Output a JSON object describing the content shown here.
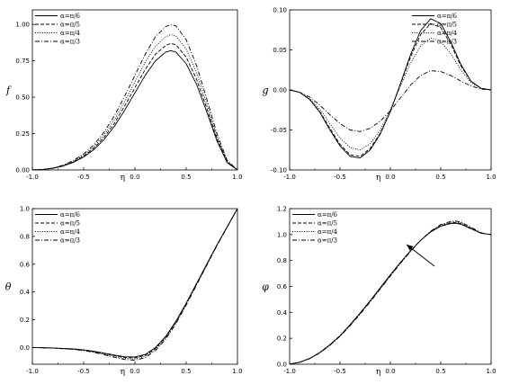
{
  "chart_data": [
    {
      "type": "line",
      "ylabel": "f",
      "xlabel": "η",
      "xlim": [
        -1.0,
        1.0
      ],
      "ylim": [
        0.0,
        1.1
      ],
      "xticks": [
        "-1.0",
        "-0.5",
        "0.0",
        "0.5",
        "1.0"
      ],
      "yticks": [
        "0.00",
        "0.25",
        "0.50",
        "0.75",
        "1.00"
      ],
      "ytick_values": [
        0,
        0.25,
        0.5,
        0.75,
        1.0
      ],
      "legend_position": "top-left",
      "x": [
        -1.0,
        -0.9,
        -0.8,
        -0.7,
        -0.6,
        -0.5,
        -0.4,
        -0.3,
        -0.2,
        -0.1,
        0.0,
        0.1,
        0.2,
        0.3,
        0.35,
        0.4,
        0.5,
        0.6,
        0.7,
        0.8,
        0.9,
        1.0
      ],
      "series": [
        {
          "name": "α=π/6",
          "style": "solid",
          "values": [
            0.0,
            0.003,
            0.011,
            0.027,
            0.052,
            0.089,
            0.14,
            0.21,
            0.3,
            0.41,
            0.53,
            0.65,
            0.75,
            0.81,
            0.82,
            0.81,
            0.73,
            0.59,
            0.4,
            0.2,
            0.05,
            0.0
          ]
        },
        {
          "name": "α=π/5",
          "style": "dashed",
          "values": [
            0.0,
            0.003,
            0.012,
            0.029,
            0.056,
            0.095,
            0.15,
            0.225,
            0.32,
            0.44,
            0.565,
            0.69,
            0.795,
            0.855,
            0.87,
            0.86,
            0.775,
            0.625,
            0.425,
            0.215,
            0.055,
            0.0
          ]
        },
        {
          "name": "α=π/4",
          "style": "dotted",
          "values": [
            0.0,
            0.003,
            0.012,
            0.031,
            0.06,
            0.102,
            0.16,
            0.24,
            0.345,
            0.47,
            0.605,
            0.74,
            0.85,
            0.915,
            0.93,
            0.92,
            0.83,
            0.67,
            0.455,
            0.23,
            0.06,
            0.0
          ]
        },
        {
          "name": "α=π/3",
          "style": "dashdot",
          "values": [
            0.0,
            0.003,
            0.013,
            0.033,
            0.065,
            0.11,
            0.173,
            0.26,
            0.373,
            0.507,
            0.65,
            0.795,
            0.915,
            0.985,
            1.0,
            0.99,
            0.895,
            0.72,
            0.49,
            0.25,
            0.065,
            0.0
          ]
        }
      ]
    },
    {
      "type": "line",
      "ylabel": "g",
      "xlabel": "η",
      "xlim": [
        -1.0,
        1.0
      ],
      "ylim": [
        -0.1,
        0.1
      ],
      "xticks": [
        "-1.0",
        "-0.5",
        "0.0",
        "0.5",
        "1.0"
      ],
      "yticks": [
        "-0.10",
        "-0.05",
        "0.00",
        "0.05",
        "0.10"
      ],
      "ytick_values": [
        -0.1,
        -0.05,
        0.0,
        0.05,
        0.1
      ],
      "legend_position": "top-right",
      "x": [
        -1.0,
        -0.9,
        -0.8,
        -0.7,
        -0.6,
        -0.5,
        -0.4,
        -0.3,
        -0.2,
        -0.1,
        0.0,
        0.1,
        0.2,
        0.3,
        0.4,
        0.5,
        0.6,
        0.7,
        0.8,
        0.9,
        1.0
      ],
      "series": [
        {
          "name": "α=π/6",
          "style": "solid",
          "values": [
            0.0,
            -0.003,
            -0.012,
            -0.028,
            -0.05,
            -0.07,
            -0.083,
            -0.085,
            -0.075,
            -0.055,
            -0.027,
            0.008,
            0.044,
            0.074,
            0.089,
            0.083,
            0.06,
            0.032,
            0.011,
            0.002,
            0.0
          ]
        },
        {
          "name": "α=π/5",
          "style": "dashed",
          "values": [
            0.0,
            -0.003,
            -0.012,
            -0.027,
            -0.048,
            -0.068,
            -0.081,
            -0.083,
            -0.073,
            -0.054,
            -0.027,
            0.007,
            0.041,
            0.069,
            0.083,
            0.078,
            0.057,
            0.03,
            0.011,
            0.002,
            0.0
          ]
        },
        {
          "name": "α=π/4",
          "style": "dotted",
          "values": [
            0.0,
            -0.003,
            -0.011,
            -0.024,
            -0.042,
            -0.06,
            -0.072,
            -0.075,
            -0.067,
            -0.05,
            -0.025,
            0.005,
            0.033,
            0.055,
            0.065,
            0.061,
            0.045,
            0.025,
            0.009,
            0.002,
            0.0
          ]
        },
        {
          "name": "α=π/3",
          "style": "dashdot",
          "values": [
            0.0,
            -0.003,
            -0.009,
            -0.019,
            -0.031,
            -0.042,
            -0.05,
            -0.052,
            -0.048,
            -0.039,
            -0.026,
            -0.01,
            0.006,
            0.018,
            0.024,
            0.023,
            0.018,
            0.011,
            0.005,
            0.001,
            0.0
          ]
        }
      ]
    },
    {
      "type": "line",
      "ylabel": "θ",
      "xlabel": "η",
      "xlim": [
        -1.0,
        1.0
      ],
      "ylim": [
        -0.12,
        1.0
      ],
      "xticks": [
        "-1.0",
        "-0.5",
        "0.0",
        "0.5",
        "1.0"
      ],
      "yticks": [
        "0.0",
        "0.2",
        "0.4",
        "0.6",
        "0.8",
        "1.0"
      ],
      "ytick_values": [
        0.0,
        0.2,
        0.4,
        0.6,
        0.8,
        1.0
      ],
      "legend_position": "top-left",
      "x": [
        -1.0,
        -0.8,
        -0.6,
        -0.5,
        -0.4,
        -0.3,
        -0.2,
        -0.1,
        0.0,
        0.1,
        0.2,
        0.3,
        0.4,
        0.5,
        0.6,
        0.7,
        0.8,
        0.9,
        1.0
      ],
      "series": [
        {
          "name": "α=π/6",
          "style": "solid",
          "values": [
            0.0,
            -0.003,
            -0.01,
            -0.017,
            -0.027,
            -0.04,
            -0.054,
            -0.066,
            -0.068,
            -0.05,
            0.0,
            0.08,
            0.19,
            0.32,
            0.46,
            0.6,
            0.74,
            0.87,
            1.0
          ]
        },
        {
          "name": "α=π/5",
          "style": "dashed",
          "values": [
            0.0,
            -0.003,
            -0.011,
            -0.018,
            -0.029,
            -0.043,
            -0.058,
            -0.071,
            -0.074,
            -0.056,
            -0.006,
            0.075,
            0.185,
            0.316,
            0.457,
            0.598,
            0.738,
            0.869,
            1.0
          ]
        },
        {
          "name": "α=π/4",
          "style": "dotted",
          "values": [
            0.0,
            -0.004,
            -0.012,
            -0.02,
            -0.032,
            -0.047,
            -0.064,
            -0.078,
            -0.082,
            -0.064,
            -0.014,
            0.068,
            0.179,
            0.311,
            0.453,
            0.595,
            0.736,
            0.868,
            1.0
          ]
        },
        {
          "name": "α=π/3",
          "style": "dashdot",
          "values": [
            0.0,
            -0.004,
            -0.013,
            -0.022,
            -0.035,
            -0.052,
            -0.07,
            -0.086,
            -0.091,
            -0.073,
            -0.022,
            0.06,
            0.172,
            0.305,
            0.448,
            0.591,
            0.733,
            0.867,
            1.0
          ]
        }
      ]
    },
    {
      "type": "line",
      "ylabel": "φ",
      "xlabel": "η",
      "xlim": [
        -1.0,
        1.0
      ],
      "ylim": [
        0.0,
        1.2
      ],
      "xticks": [
        "-1.0",
        "-0.5",
        "0.0",
        "0.5",
        "1.0"
      ],
      "yticks": [
        "0.0",
        "0.2",
        "0.4",
        "0.6",
        "0.8",
        "1.0",
        "1.2"
      ],
      "ytick_values": [
        0.0,
        0.2,
        0.4,
        0.6,
        0.8,
        1.0,
        1.2
      ],
      "legend_position": "top-left",
      "x": [
        -1.0,
        -0.9,
        -0.8,
        -0.7,
        -0.6,
        -0.5,
        -0.4,
        -0.3,
        -0.2,
        -0.1,
        0.0,
        0.1,
        0.2,
        0.3,
        0.4,
        0.5,
        0.6,
        0.65,
        0.7,
        0.8,
        0.9,
        1.0
      ],
      "series": [
        {
          "name": "α=π/6",
          "style": "solid",
          "values": [
            0.0,
            0.015,
            0.045,
            0.09,
            0.15,
            0.22,
            0.305,
            0.395,
            0.49,
            0.59,
            0.69,
            0.785,
            0.875,
            0.955,
            1.02,
            1.065,
            1.085,
            1.087,
            1.08,
            1.045,
            1.01,
            1.0
          ]
        },
        {
          "name": "α=π/5",
          "style": "dashed",
          "values": [
            0.0,
            0.015,
            0.045,
            0.09,
            0.15,
            0.22,
            0.303,
            0.393,
            0.488,
            0.587,
            0.687,
            0.783,
            0.873,
            0.955,
            1.022,
            1.068,
            1.09,
            1.092,
            1.085,
            1.048,
            1.011,
            1.0
          ]
        },
        {
          "name": "α=π/4",
          "style": "dotted",
          "values": [
            0.0,
            0.015,
            0.044,
            0.089,
            0.148,
            0.218,
            0.3,
            0.39,
            0.485,
            0.584,
            0.684,
            0.781,
            0.872,
            0.955,
            1.024,
            1.072,
            1.095,
            1.097,
            1.09,
            1.052,
            1.012,
            1.0
          ]
        },
        {
          "name": "α=π/3",
          "style": "dashdot",
          "values": [
            0.0,
            0.014,
            0.043,
            0.087,
            0.145,
            0.215,
            0.296,
            0.386,
            0.481,
            0.58,
            0.68,
            0.778,
            0.87,
            0.955,
            1.026,
            1.077,
            1.102,
            1.104,
            1.096,
            1.057,
            1.014,
            1.0
          ]
        }
      ]
    }
  ]
}
